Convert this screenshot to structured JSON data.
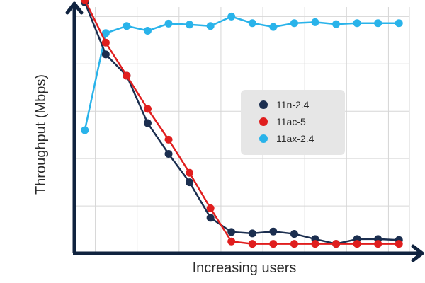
{
  "chart_data": {
    "type": "line",
    "xlabel": "Increasing users",
    "ylabel": "Throughput (Mbps)",
    "x": [
      1,
      2,
      3,
      4,
      5,
      6,
      7,
      8,
      9,
      10,
      11,
      12,
      13,
      14,
      15,
      16
    ],
    "xlim": [
      0.5,
      16.5
    ],
    "ylim": [
      0,
      5.2
    ],
    "grid": true,
    "legend_position": "center-right",
    "series": [
      {
        "name": "11n-2.4",
        "color": "#1b2e4f",
        "values": [
          5.3,
          4.2,
          3.75,
          2.75,
          2.1,
          1.5,
          0.75,
          0.45,
          0.42,
          0.46,
          0.41,
          0.3,
          0.2,
          0.3,
          0.3,
          0.28
        ]
      },
      {
        "name": "11ac-5",
        "color": "#e01e1e",
        "values": [
          5.35,
          4.45,
          3.75,
          3.05,
          2.4,
          1.7,
          0.95,
          0.25,
          0.2,
          0.2,
          0.2,
          0.2,
          0.2,
          0.2,
          0.2,
          0.2
        ]
      },
      {
        "name": "11ax-2.4",
        "color": "#29b3ea",
        "values": [
          2.6,
          4.65,
          4.8,
          4.7,
          4.85,
          4.83,
          4.8,
          5.0,
          4.86,
          4.78,
          4.86,
          4.88,
          4.84,
          4.86,
          4.86,
          4.86
        ]
      }
    ]
  }
}
